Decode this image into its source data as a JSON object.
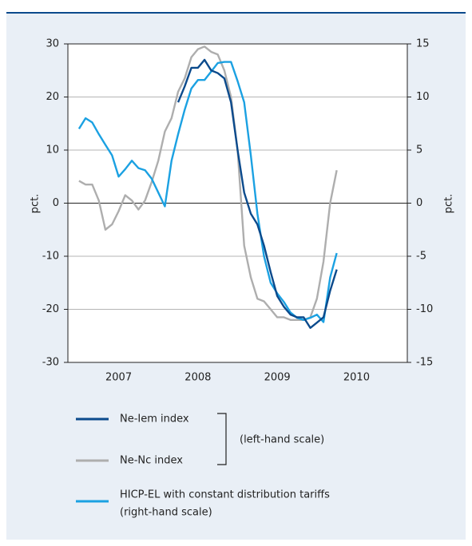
{
  "chart_data": {
    "type": "line",
    "ylabel": "pct.",
    "y2label": "pct.",
    "x": [
      2007,
      2007.083,
      2007.167,
      2007.25,
      2007.333,
      2007.417,
      2007.5,
      2007.583,
      2007.667,
      2007.75,
      2007.833,
      2007.917,
      2008,
      2008.083,
      2008.167,
      2008.25,
      2008.333,
      2008.417,
      2008.5,
      2008.583,
      2008.667,
      2008.75,
      2008.833,
      2008.917,
      2009,
      2009.083,
      2009.167,
      2009.25,
      2009.333,
      2009.417,
      2009.5,
      2009.583,
      2009.667,
      2009.75,
      2009.833,
      2009.917,
      2010,
      2010.083,
      2010.167,
      2010.25
    ],
    "xlim": [
      2006.86,
      2011.14
    ],
    "xticks": [
      {
        "value": 2007.5,
        "label": "2007"
      },
      {
        "value": 2008.5,
        "label": "2008"
      },
      {
        "value": 2009.5,
        "label": "2009"
      },
      {
        "value": 2010.5,
        "label": "2010"
      }
    ],
    "ylim": [
      -30,
      30
    ],
    "yticks": [
      -30,
      -20,
      -10,
      0,
      10,
      20,
      30
    ],
    "y2lim": [
      -15,
      15
    ],
    "y2ticks": [
      -15,
      -10,
      -5,
      0,
      5,
      10,
      15
    ],
    "grid": true,
    "series": [
      {
        "name": "Ne-Iem index",
        "color": "#0b4a8c",
        "axis": "y",
        "values": [
          null,
          null,
          null,
          null,
          null,
          null,
          null,
          null,
          null,
          null,
          null,
          null,
          null,
          null,
          null,
          19,
          22,
          25.5,
          25.5,
          27,
          25,
          24.5,
          23.5,
          19,
          10,
          2,
          -2,
          -4,
          -8,
          -13,
          -17.5,
          -19.5,
          -21,
          -21.5,
          -21.5,
          -23.5,
          -22.5,
          -21.5,
          -16.5,
          -12.5
        ]
      },
      {
        "name": "Ne-Nc index",
        "color": "#aeaeae",
        "axis": "y",
        "values": [
          4.2,
          3.5,
          3.5,
          0.5,
          -5,
          -4,
          -1.5,
          1.5,
          0.5,
          -1.2,
          0.5,
          4,
          8,
          13.5,
          16,
          21,
          23.5,
          27.5,
          29,
          29.5,
          28.5,
          28,
          25,
          20,
          10,
          -8,
          -14,
          -18,
          -18.5,
          -20,
          -21.5,
          -21.5,
          -22,
          -22,
          -22,
          -21.5,
          -18,
          -11,
          0,
          6.2
        ]
      },
      {
        "name": "HICP-EL with constant distribution tariffs",
        "color": "#1ba1e2",
        "axis": "y2",
        "values": [
          7,
          8,
          7.6,
          6.5,
          5.5,
          4.5,
          2.5,
          3.2,
          4,
          3.3,
          3.1,
          2.3,
          1,
          -0.3,
          4,
          6.5,
          8.8,
          10.8,
          11.6,
          11.6,
          12.4,
          13.2,
          13.3,
          13.3,
          11.5,
          9.5,
          4.5,
          -1,
          -5,
          -7.5,
          -8.5,
          -9.3,
          -10.3,
          -10.8,
          -11,
          -10.8,
          -10.5,
          -11.2,
          -7,
          -4.7
        ]
      }
    ],
    "legend_notes": {
      "left_scale": "(left-hand scale)",
      "right_scale": "(right-hand scale)"
    }
  }
}
